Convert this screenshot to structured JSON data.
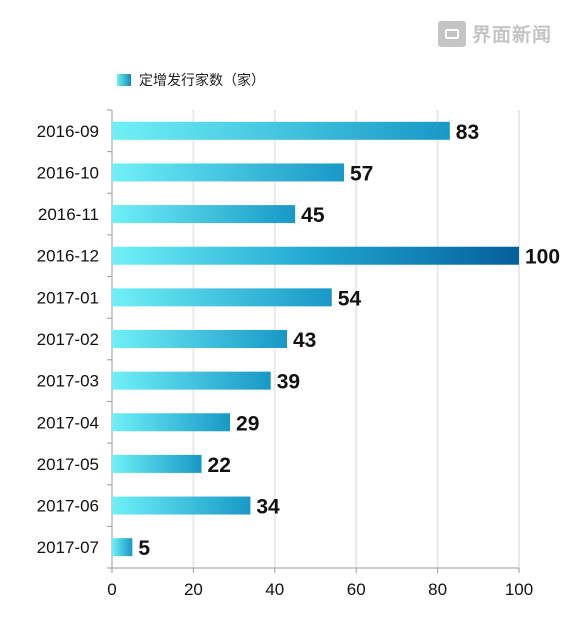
{
  "watermark": {
    "text": "界面新闻"
  },
  "colors": {
    "bar_start": "#6ff0f7",
    "bar_end": "#1898c6",
    "bar_max_end": "#055f9c",
    "axis": "#9a9a9a",
    "grid": "#e9e9e9",
    "text": "#111111"
  },
  "chart_data": {
    "type": "bar",
    "orientation": "horizontal",
    "categories": [
      "2016-09",
      "2016-10",
      "2016-11",
      "2016-12",
      "2017-01",
      "2017-02",
      "2017-03",
      "2017-04",
      "2017-05",
      "2017-06",
      "2017-07"
    ],
    "series": [
      {
        "name": "定增发行家数（家）",
        "values": [
          83,
          57,
          45,
          100,
          54,
          43,
          39,
          29,
          22,
          34,
          5
        ]
      }
    ],
    "xlim": [
      0,
      100
    ],
    "xticks": [
      0,
      20,
      40,
      60,
      80,
      100
    ],
    "grid": true,
    "legend_position": "top-left",
    "data_labels": true
  }
}
